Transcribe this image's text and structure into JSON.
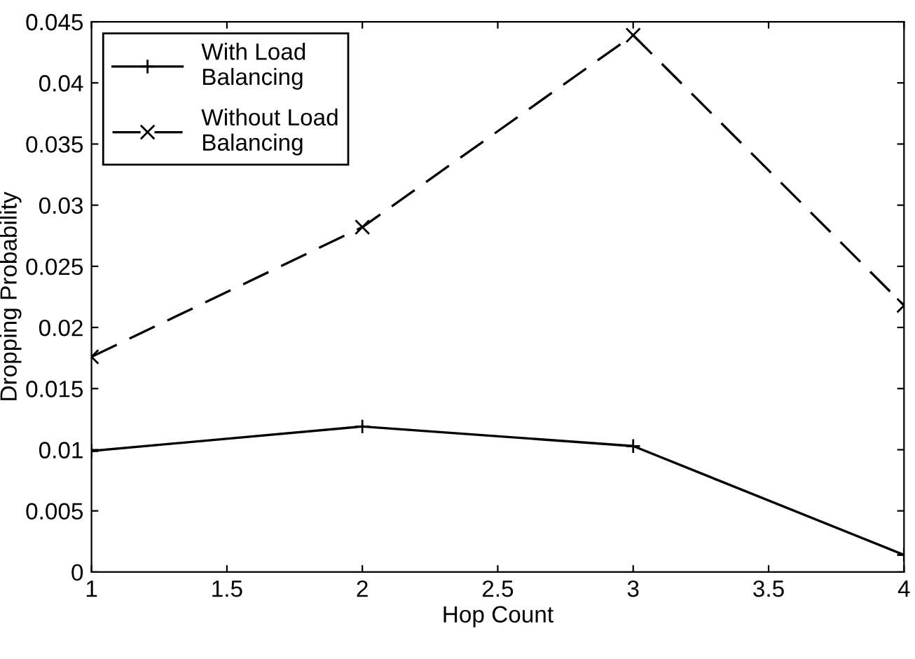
{
  "chart_data": {
    "type": "line",
    "xlabel": "Hop Count",
    "ylabel": "Dropping Probability",
    "x": [
      1,
      2,
      3,
      4
    ],
    "series": [
      {
        "name": "With Load\nBalancing",
        "color": "#000000",
        "values": [
          0.0099,
          0.0119,
          0.0103,
          0.0014
        ],
        "line_style": "solid",
        "marker": "plus"
      },
      {
        "name": "Without Load\nBalancing",
        "color": "#000000",
        "values": [
          0.0176,
          0.0282,
          0.0439,
          0.0218
        ],
        "line_style": "dashed",
        "marker": "cross"
      }
    ],
    "xlim": [
      1,
      4
    ],
    "xticks": [
      1,
      1.5,
      2,
      2.5,
      3,
      3.5,
      4
    ],
    "ylim": [
      0,
      0.045
    ],
    "yticks": [
      0,
      0.005,
      0.01,
      0.015,
      0.02,
      0.025,
      0.03,
      0.035,
      0.04,
      0.045
    ],
    "grid": false,
    "legend": "top left"
  }
}
